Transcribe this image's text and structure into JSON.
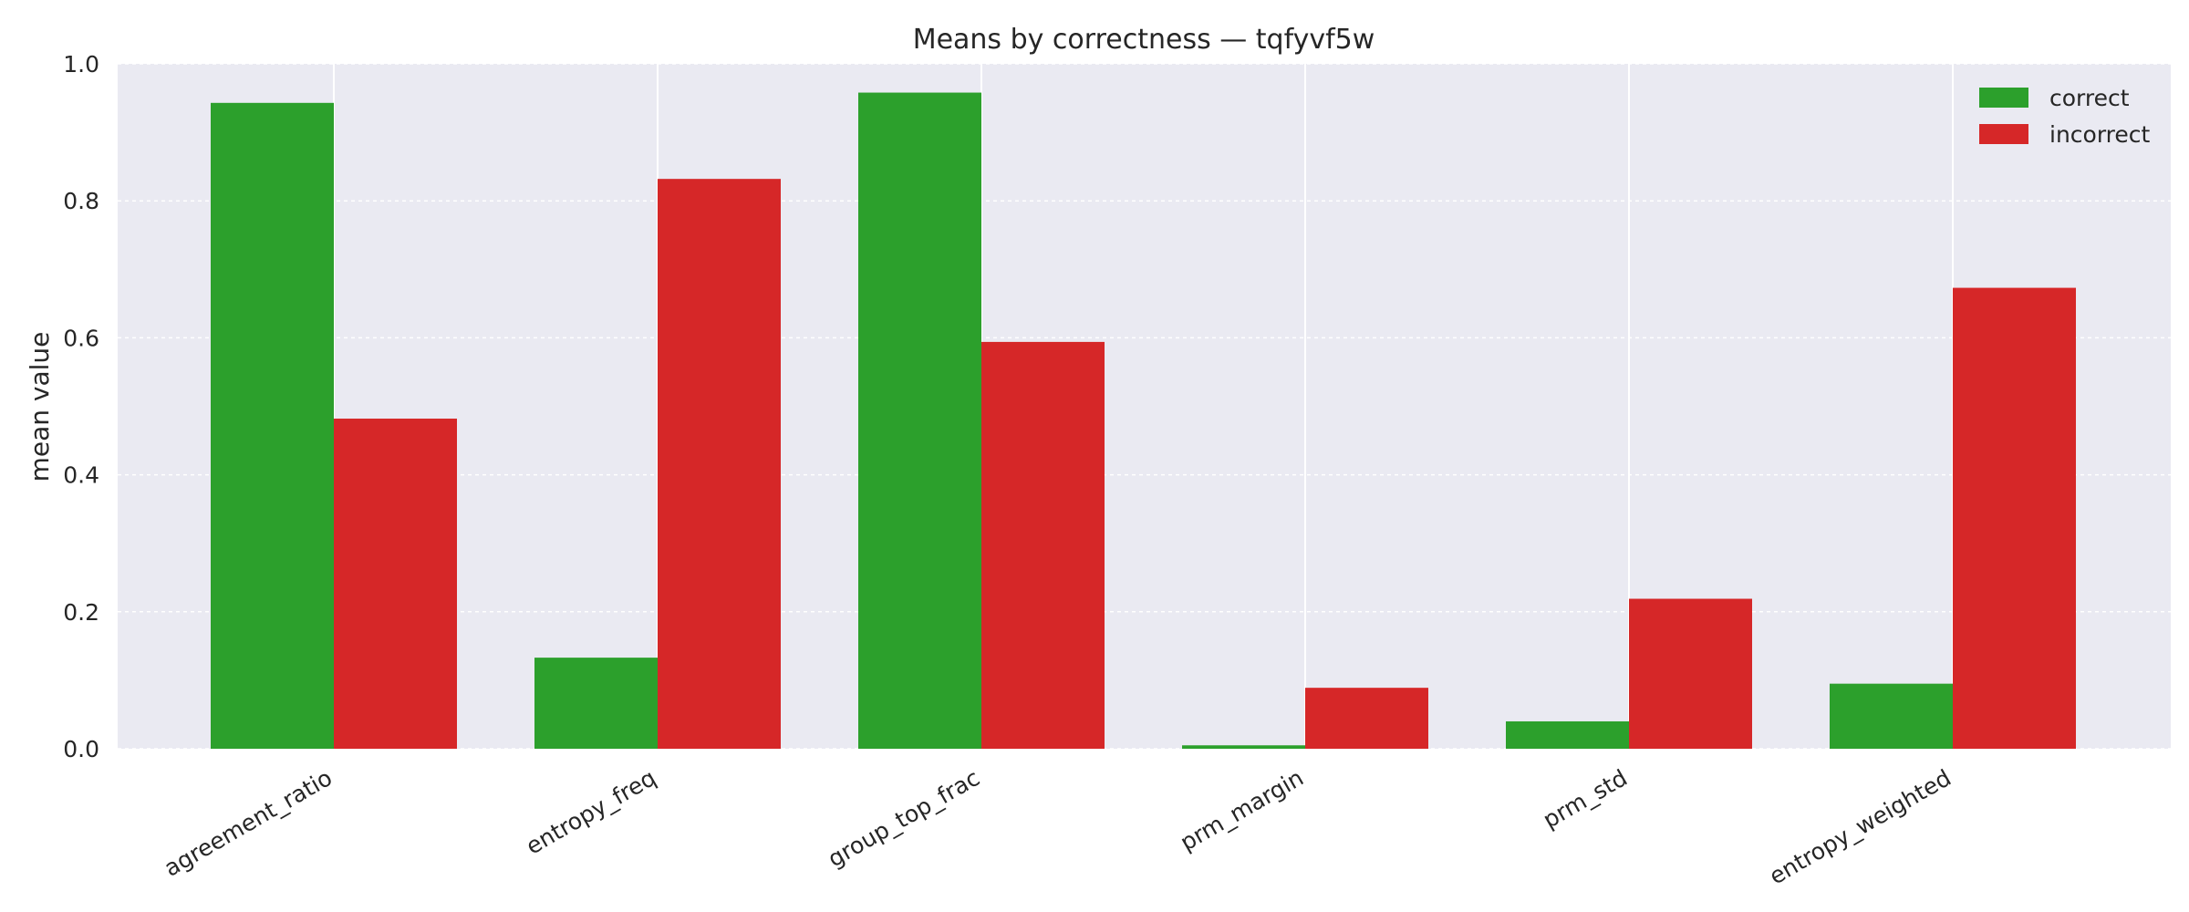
{
  "chart_data": {
    "type": "bar",
    "title": "Means by correctness — tqfyvf5w",
    "xlabel": "",
    "ylabel": "mean value",
    "ylim": [
      0,
      1.0
    ],
    "yticks": [
      "0.0",
      "0.2",
      "0.4",
      "0.6",
      "0.8",
      "1.0"
    ],
    "categories": [
      "agreement_ratio",
      "entropy_freq",
      "group_top_frac",
      "prm_margin",
      "prm_std",
      "entropy_weighted"
    ],
    "series": [
      {
        "name": "correct",
        "color": "#2ca02c",
        "values": [
          0.943,
          0.133,
          0.958,
          0.005,
          0.04,
          0.095
        ]
      },
      {
        "name": "incorrect",
        "color": "#d62728",
        "values": [
          0.482,
          0.832,
          0.594,
          0.089,
          0.219,
          0.673
        ]
      }
    ],
    "grid": true,
    "legend_position": "top-right"
  }
}
